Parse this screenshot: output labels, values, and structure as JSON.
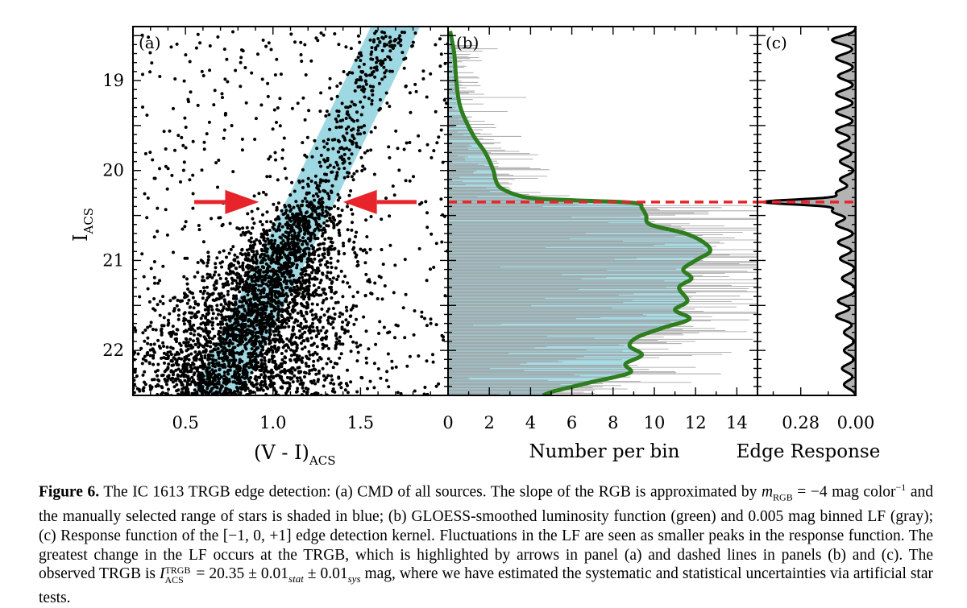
{
  "chart_data": [
    {
      "panel_label": "(a)",
      "type": "scatter",
      "title": "CMD of all sources",
      "xlabel": "(V - I)",
      "xlabel_sub": "ACS",
      "ylabel": "I",
      "ylabel_sub": "ACS",
      "xlim": [
        0.2,
        2.0
      ],
      "ylim": [
        22.5,
        18.4
      ],
      "x_ticks": [
        "0.5",
        "1.0",
        "1.5"
      ],
      "x_tick_values": [
        0.5,
        1.0,
        1.5
      ],
      "y_ticks": [
        "19",
        "20",
        "21",
        "22"
      ],
      "y_tick_values": [
        19,
        20,
        21,
        22
      ],
      "rgb_slope_mag_per_color": -4,
      "selection_band": {
        "color": "#9ed8e2",
        "center_color_at_I_21": 1.05,
        "width_color": 0.28
      },
      "stars_center": {
        "color": 1.02,
        "mag": 21.0
      },
      "trgb_mag": 20.35,
      "arrows": [
        {
          "direction": "right",
          "tip_color": 0.92,
          "tail_color": 0.55,
          "mag": 20.35
        },
        {
          "direction": "left",
          "tip_color": 1.4,
          "tail_color": 1.82,
          "mag": 20.35
        }
      ],
      "arrow_color": "#e8242b"
    },
    {
      "panel_label": "(b)",
      "type": "line",
      "xlabel": "Number per bin",
      "xlim": [
        0,
        15
      ],
      "ylim": [
        22.5,
        18.4
      ],
      "x_ticks": [
        "0",
        "2",
        "4",
        "6",
        "8",
        "10",
        "12",
        "14"
      ],
      "x_tick_values": [
        0,
        2,
        4,
        6,
        8,
        10,
        12,
        14
      ],
      "series": [
        {
          "name": "GLOESS-smoothed luminosity function",
          "color": "#2e7d1e",
          "mag": [
            18.45,
            18.7,
            19.0,
            19.3,
            19.6,
            19.8,
            20.0,
            20.1,
            20.2,
            20.3,
            20.33,
            20.36,
            20.42,
            20.5,
            20.6,
            20.7,
            20.8,
            20.9,
            21.0,
            21.1,
            21.2,
            21.3,
            21.45,
            21.55,
            21.65,
            21.75,
            21.85,
            21.95,
            22.05,
            22.15,
            22.25,
            22.35,
            22.45,
            22.5
          ],
          "values": [
            0.1,
            0.3,
            0.4,
            0.6,
            1.2,
            1.8,
            2.2,
            2.3,
            2.6,
            3.8,
            6.0,
            9.0,
            9.4,
            9.6,
            9.8,
            11.5,
            12.4,
            12.7,
            12.0,
            11.4,
            11.8,
            11.2,
            11.6,
            11.0,
            11.7,
            10.4,
            9.2,
            8.8,
            9.4,
            8.6,
            8.8,
            7.0,
            5.2,
            4.6
          ]
        },
        {
          "name": "0.005 mag binned LF",
          "color": "#9a9a9a",
          "mag_range": [
            18.6,
            22.5
          ],
          "bin_width_mag": 0.005
        }
      ],
      "shaded_color": "#a8dbe4",
      "trgb_line_mag": 20.35,
      "trgb_line_color": "#e8242b"
    },
    {
      "panel_label": "(c)",
      "type": "line",
      "xlabel": "Edge Response",
      "x_ticks": [
        "0.28",
        "0.00"
      ],
      "x_tick_values": [
        0.28,
        0.0
      ],
      "xlim": [
        0.5,
        0.0
      ],
      "ylim": [
        22.5,
        18.4
      ],
      "peak_response": 0.45,
      "peak_mag": 20.35,
      "minor_peak_mags": [
        18.55,
        18.75,
        18.95,
        19.15,
        19.35,
        19.55,
        19.72,
        19.9,
        20.1,
        20.25,
        20.45,
        20.6,
        20.8,
        20.98,
        21.2,
        21.45,
        21.62,
        21.8,
        22.0,
        22.2,
        22.38
      ],
      "minor_peak_values": [
        0.12,
        0.1,
        0.09,
        0.1,
        0.1,
        0.1,
        0.09,
        0.08,
        0.08,
        0.1,
        0.12,
        0.1,
        0.09,
        0.08,
        0.07,
        0.09,
        0.1,
        0.06,
        0.06,
        0.07,
        0.06
      ],
      "fill_color": "#b3b3b3",
      "trgb_line_mag": 20.35,
      "trgb_line_color": "#e8242b"
    }
  ],
  "caption": {
    "label": "Figure 6.",
    "text_1": "The IC 1613 TRGB edge detection: (a) CMD of all sources. The slope of the RGB is approximated by ",
    "math_1": "m",
    "math_1_sub": "RGB",
    "math_1_rest": " = −4",
    "text_2": "mag color",
    "text_2_sup": "−1",
    "text_3": " and the manually selected range of stars is shaded in blue; (b) GLOESS-smoothed luminosity function (green) and 0.005 mag binned LF (gray); (c) Response function of the [−1, 0, +1] edge detection kernel. Fluctuations in the LF are seen as smaller peaks in the response function. The greatest change in the LF occurs at the TRGB, which is highlighted by arrows in panel (a) and dashed lines in panels (b) and (c). The observed TRGB is ",
    "math_2": "I",
    "math_2_sup": "TRGB",
    "math_2_sub": "ACS",
    "math_2_rest": " = 20.35 ± 0.01",
    "stat_sub": "stat",
    "math_3": " ± 0.01",
    "sys_sub": "sys",
    "text_4": " mag, where we have estimated the systematic and statistical uncertainties via artificial star tests."
  }
}
